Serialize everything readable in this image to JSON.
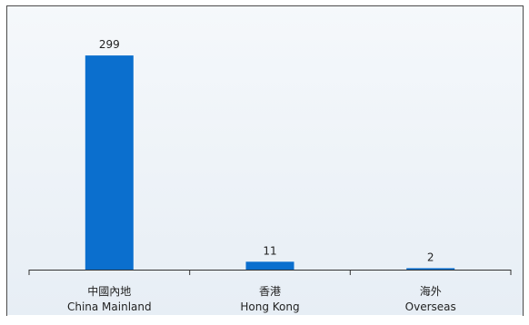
{
  "chart_data": {
    "type": "bar",
    "categories": [
      {
        "zh": "中國內地",
        "en": "China  Mainland"
      },
      {
        "zh": "香港",
        "en": "Hong Kong"
      },
      {
        "zh": "海外",
        "en": "Overseas"
      }
    ],
    "values": [
      299,
      11,
      2
    ],
    "data_labels": [
      "299",
      "11",
      "2"
    ],
    "ylim": [
      0,
      322
    ],
    "grid": false,
    "legend": "none",
    "title": "",
    "xlabel": "",
    "ylabel": ""
  },
  "colors": {
    "bar": "#0b6fce",
    "background_top": "#f5f8fb",
    "background_bottom": "#e7eef5",
    "frame": "#4a4a4a",
    "axis": "#333333",
    "text": "#222222"
  }
}
